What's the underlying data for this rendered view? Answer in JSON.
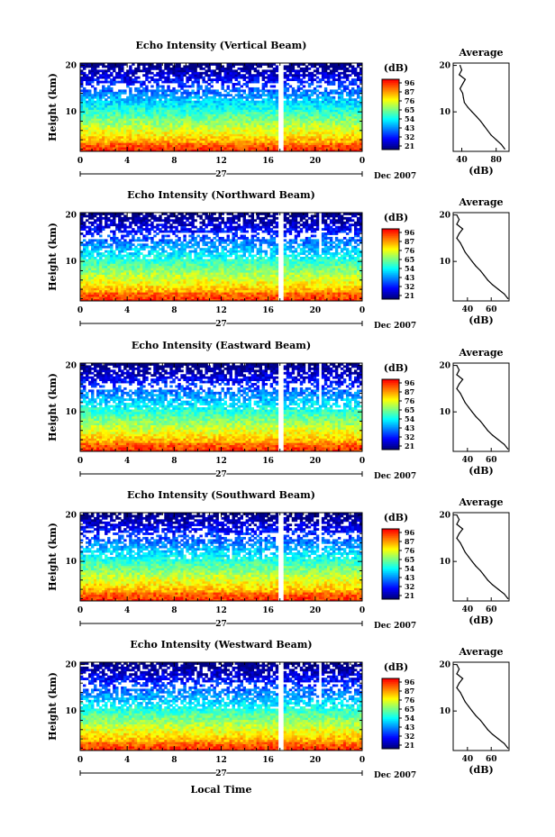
{
  "chart_data": [
    {
      "type": "heatmap",
      "title": "Echo Intensity (Vertical Beam)",
      "ylabel": "Height (km)",
      "yticks": [
        "10",
        "20"
      ],
      "xticks": [
        "0",
        "4",
        "8",
        "12",
        "16",
        "20",
        "0"
      ],
      "xlim": [
        0,
        24
      ],
      "ylim": [
        1.5,
        20.5
      ],
      "day_label": "27",
      "month_label": "Dec 2007",
      "colorbar_unit": "(dB)",
      "colorbar_ticks": [
        "96",
        "87",
        "76",
        "65",
        "54",
        "43",
        "32",
        "21"
      ],
      "profile": {
        "title": "Average",
        "xlabel": "(dB)",
        "xticks": [
          "40",
          "80"
        ],
        "yticks": [
          "10",
          "20"
        ],
        "xlim": [
          30,
          95
        ],
        "heights": [
          20,
          19,
          18,
          17,
          16,
          15,
          14,
          13,
          12,
          11,
          10,
          9,
          8,
          7,
          6,
          5,
          4,
          3,
          2
        ],
        "values": [
          38,
          40,
          37,
          44,
          41,
          38,
          41,
          42,
          43,
          47,
          52,
          57,
          62,
          66,
          70,
          74,
          80,
          86,
          90
        ]
      }
    },
    {
      "type": "heatmap",
      "title": "Echo Intensity (Northward Beam)",
      "ylabel": "Height (km)",
      "yticks": [
        "10",
        "20"
      ],
      "xticks": [
        "0",
        "4",
        "8",
        "12",
        "16",
        "20",
        "0"
      ],
      "xlim": [
        0,
        24
      ],
      "ylim": [
        1.5,
        20.5
      ],
      "day_label": "27",
      "month_label": "Dec 2007",
      "colorbar_unit": "(dB)",
      "colorbar_ticks": [
        "96",
        "87",
        "76",
        "65",
        "54",
        "43",
        "32",
        "21"
      ],
      "profile": {
        "title": "Average",
        "xlabel": "(dB)",
        "xticks": [
          "40",
          "60"
        ],
        "yticks": [
          "10",
          "20"
        ],
        "xlim": [
          28,
          75
        ],
        "heights": [
          20,
          19,
          18,
          17,
          16,
          15,
          14,
          13,
          12,
          11,
          10,
          9,
          8,
          7,
          6,
          5,
          4,
          3,
          2
        ],
        "values": [
          31,
          33,
          31,
          36,
          33,
          31,
          34,
          36,
          38,
          41,
          44,
          47,
          51,
          54,
          57,
          61,
          66,
          71,
          74
        ]
      }
    },
    {
      "type": "heatmap",
      "title": "Echo Intensity (Eastward Beam)",
      "ylabel": "Height (km)",
      "yticks": [
        "10",
        "20"
      ],
      "xticks": [
        "0",
        "4",
        "8",
        "12",
        "16",
        "20",
        "0"
      ],
      "xlim": [
        0,
        24
      ],
      "ylim": [
        1.5,
        20.5
      ],
      "day_label": "27",
      "month_label": "Dec 2007",
      "colorbar_unit": "(dB)",
      "colorbar_ticks": [
        "96",
        "87",
        "76",
        "65",
        "54",
        "43",
        "32",
        "21"
      ],
      "profile": {
        "title": "Average",
        "xlabel": "(dB)",
        "xticks": [
          "40",
          "60"
        ],
        "yticks": [
          "10",
          "20"
        ],
        "xlim": [
          28,
          75
        ],
        "heights": [
          20,
          19,
          18,
          17,
          16,
          15,
          14,
          13,
          12,
          11,
          10,
          9,
          8,
          7,
          6,
          5,
          4,
          3,
          2
        ],
        "values": [
          31,
          33,
          31,
          36,
          33,
          31,
          34,
          36,
          38,
          41,
          44,
          47,
          51,
          54,
          57,
          61,
          66,
          71,
          74
        ]
      }
    },
    {
      "type": "heatmap",
      "title": "Echo Intensity (Southward Beam)",
      "ylabel": "Height (km)",
      "yticks": [
        "10",
        "20"
      ],
      "xticks": [
        "0",
        "4",
        "8",
        "12",
        "16",
        "20",
        "0"
      ],
      "xlim": [
        0,
        24
      ],
      "ylim": [
        1.5,
        20.5
      ],
      "day_label": "27",
      "month_label": "Dec 2007",
      "colorbar_unit": "(dB)",
      "colorbar_ticks": [
        "96",
        "87",
        "76",
        "65",
        "54",
        "43",
        "32",
        "21"
      ],
      "profile": {
        "title": "Average",
        "xlabel": "(dB)",
        "xticks": [
          "40",
          "60"
        ],
        "yticks": [
          "10",
          "20"
        ],
        "xlim": [
          28,
          75
        ],
        "heights": [
          20,
          19,
          18,
          17,
          16,
          15,
          14,
          13,
          12,
          11,
          10,
          9,
          8,
          7,
          6,
          5,
          4,
          3,
          2
        ],
        "values": [
          31,
          33,
          31,
          36,
          33,
          31,
          34,
          36,
          38,
          41,
          44,
          47,
          51,
          54,
          57,
          61,
          66,
          71,
          74
        ]
      }
    },
    {
      "type": "heatmap",
      "title": "Echo Intensity (Westward Beam)",
      "ylabel": "Height (km)",
      "yticks": [
        "10",
        "20"
      ],
      "xticks": [
        "0",
        "4",
        "8",
        "12",
        "16",
        "20",
        "0"
      ],
      "xlim": [
        0,
        24
      ],
      "ylim": [
        1.5,
        20.5
      ],
      "day_label": "27",
      "month_label": "Dec 2007",
      "colorbar_unit": "(dB)",
      "colorbar_ticks": [
        "96",
        "87",
        "76",
        "65",
        "54",
        "43",
        "32",
        "21"
      ],
      "profile": {
        "title": "Average",
        "xlabel": "(dB)",
        "xticks": [
          "40",
          "60"
        ],
        "yticks": [
          "10",
          "20"
        ],
        "xlim": [
          28,
          75
        ],
        "heights": [
          20,
          19,
          18,
          17,
          16,
          15,
          14,
          13,
          12,
          11,
          10,
          9,
          8,
          7,
          6,
          5,
          4,
          3,
          2
        ],
        "values": [
          31,
          33,
          31,
          36,
          33,
          31,
          34,
          36,
          38,
          41,
          44,
          47,
          51,
          54,
          57,
          61,
          66,
          71,
          74
        ]
      }
    }
  ],
  "xlabel": "Local Time",
  "colormap": [
    "#ff0000",
    "#ff8000",
    "#ffff00",
    "#80ff80",
    "#00ffff",
    "#0080ff",
    "#0000ff",
    "#000080"
  ]
}
